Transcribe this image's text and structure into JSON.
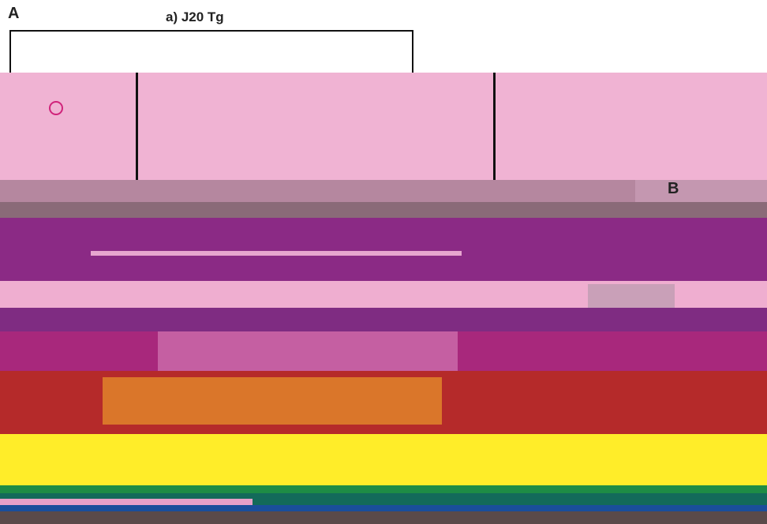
{
  "figure": {
    "panel_a": "A",
    "panel_a_title": "a) J20 Tg",
    "panel_b": "B"
  }
}
